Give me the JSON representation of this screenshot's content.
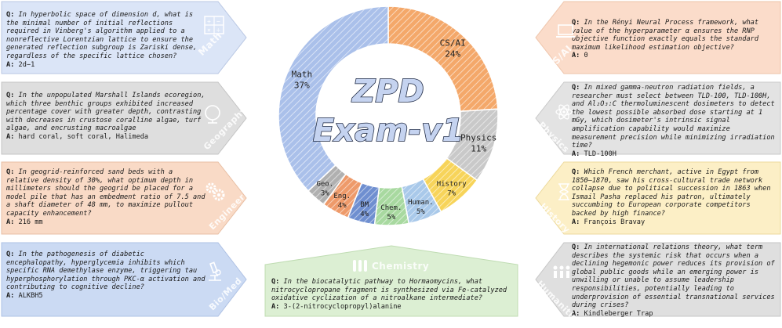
{
  "title": {
    "line1": "ZPD",
    "line2": "Exam-v1"
  },
  "chart_data": {
    "type": "pie",
    "categories": [
      "CS/AI",
      "Physics",
      "History",
      "Human.",
      "Chem.",
      "BM",
      "Eng.",
      "Geo.",
      "Math"
    ],
    "values": [
      24,
      11,
      7,
      5,
      5,
      4,
      4,
      3,
      37
    ],
    "labels": [
      "24%",
      "11%",
      "7%",
      "5%",
      "5%",
      "4%",
      "4%",
      "3%",
      "37%"
    ],
    "colors": [
      "#f4a86a",
      "#c9c9c9",
      "#f7d45a",
      "#a9c9ea",
      "#a8d9a0",
      "#6f8fd0",
      "#ee9a6a",
      "#b0b0b0",
      "#aac0ea"
    ]
  },
  "cards": {
    "math": {
      "tag": "Math",
      "color": "#dbe5f7",
      "q": "In hyperbolic space of dimension d, what is the minimal number of initial reflections required in Vinberg's algorithm applied to a nonreflective Lorentzian lattice to ensure the generated reflection subgroup is Zariski dense, regardless of the specific lattice chosen?",
      "a": "2d−1"
    },
    "geography": {
      "tag": "Geography",
      "color": "#dedede",
      "q": "In the unpopulated Marshall Islands ecoregion, which three benthic groups exhibited increased percentage cover with greater depth, contrasting with decreases in crustose coralline algae, turf algae, and encrusting macroalgae",
      "a": "hard coral, soft coral, Halimeda"
    },
    "engineer": {
      "tag": "Engineer",
      "color": "#f9dac6",
      "q": "In geogrid-reinforced sand beds with a relative density of 30%, what optimum depth in millimeters should the geogrid be placed for a model pile that has an embedment ratio of 7.5 and a shaft diameter of 48 mm, to maximize pullout capacity enhancement?",
      "a": "216 mm"
    },
    "biomed": {
      "tag": "Bio/Med",
      "color": "#cbdaf3",
      "q": "In the pathogenesis of diabetic encephalopathy, hyperglycemia inhibits which specific RNA demethylase enzyme, triggering tau hyperphosphorylation through PKC-α activation and contributing to cognitive decline?",
      "a": "ALKBH5"
    },
    "csai": {
      "tag": "CS/AI",
      "color": "#fbdcca",
      "q": "In the Rényi Neural Process framework, what value of the hyperparameter α ensures the RNP objective function exactly equals the standard maximum likelihood estimation objective?",
      "a": "0"
    },
    "physics": {
      "tag": "Physics",
      "color": "#e3e3e3",
      "q": "In mixed gamma-neutron radiation fields, a researcher must select between TLD-100, TLD-100H, and Al₂O₃:C thermoluminescent dosimeters to detect the lowest possible absorbed dose starting at 1 mGy, which dosimeter's intrinsic signal amplification capability would maximize measurement precision while minimizing irradiation time?",
      "a": "TLD-100H"
    },
    "history": {
      "tag": "History",
      "color": "#fcefc6",
      "q": "Which French merchant, active in Egypt from 1850–1870, saw his cross-cultural trade network collapse due to political succession in 1863 when Ismail Pasha replaced his patron, ultimately succumbing to European corporate competitors backed by high finance?",
      "a": "François Bravay"
    },
    "humanities": {
      "tag": "Humanities",
      "color": "#dfdfdf",
      "q": "In international relations theory, what term describes the systemic risk that occurs when a declining hegemonic power reduces its provision of global public goods while an emerging power is unwilling or unable to assume leadership responsibilities, potentially leading to underprovision of essential transnational services during crises?",
      "a": "Kindleberger Trap"
    },
    "chemistry": {
      "tag": "Chemistry",
      "color": "#dcefd3",
      "q": "In the biocatalytic pathway to Hormaomycins, what nitrocyclopropane fragment is synthesized via Fe-catalyzed oxidative cyclization of a nitroalkane intermediate?",
      "a": "3-(2-nitrocyclopropyl)alanine"
    }
  },
  "labels": {
    "q": "Q:",
    "a": "A:"
  }
}
